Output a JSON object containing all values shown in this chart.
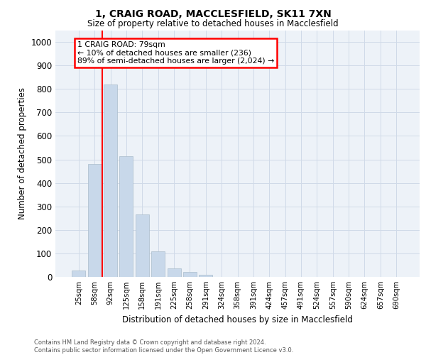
{
  "title1": "1, CRAIG ROAD, MACCLESFIELD, SK11 7XN",
  "title2": "Size of property relative to detached houses in Macclesfield",
  "xlabel": "Distribution of detached houses by size in Macclesfield",
  "ylabel": "Number of detached properties",
  "bar_labels": [
    "25sqm",
    "58sqm",
    "92sqm",
    "125sqm",
    "158sqm",
    "191sqm",
    "225sqm",
    "258sqm",
    "291sqm",
    "324sqm",
    "358sqm",
    "391sqm",
    "424sqm",
    "457sqm",
    "491sqm",
    "524sqm",
    "557sqm",
    "590sqm",
    "624sqm",
    "657sqm",
    "690sqm"
  ],
  "bar_values": [
    28,
    480,
    820,
    515,
    265,
    110,
    35,
    22,
    10,
    0,
    0,
    0,
    0,
    0,
    0,
    0,
    0,
    0,
    0,
    0,
    0
  ],
  "bar_color": "#c8d8ea",
  "bar_edgecolor": "#aabccc",
  "vline_color": "red",
  "vline_pos": 1.5,
  "ylim": [
    0,
    1050
  ],
  "yticks": [
    0,
    100,
    200,
    300,
    400,
    500,
    600,
    700,
    800,
    900,
    1000
  ],
  "annotation_text": "1 CRAIG ROAD: 79sqm\n← 10% of detached houses are smaller (236)\n89% of semi-detached houses are larger (2,024) →",
  "annotation_box_edgecolor": "red",
  "footnote1": "Contains HM Land Registry data © Crown copyright and database right 2024.",
  "footnote2": "Contains public sector information licensed under the Open Government Licence v3.0.",
  "grid_color": "#d0dae8",
  "background_color": "#edf2f8"
}
